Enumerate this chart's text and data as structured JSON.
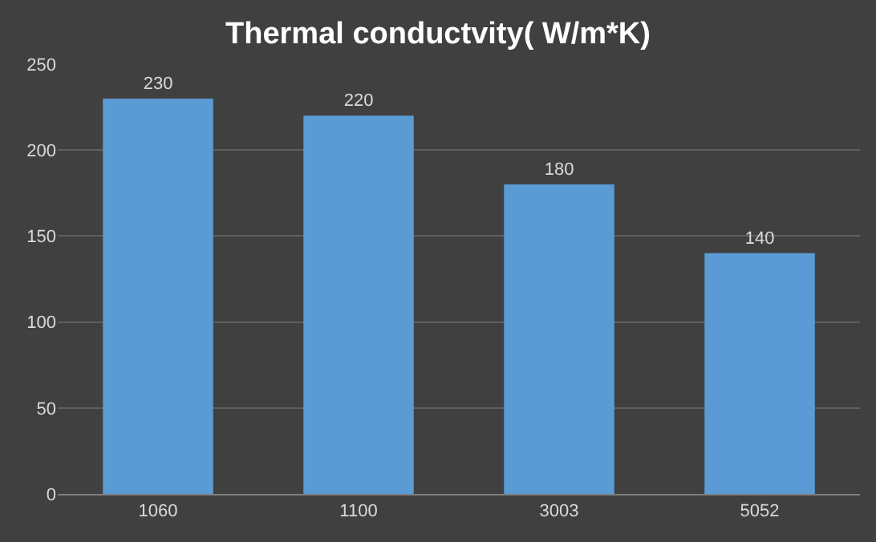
{
  "chart_data": {
    "type": "bar",
    "title": "Thermal conductvity( W/m*K)",
    "categories": [
      "1060",
      "1100",
      "3003",
      "5052"
    ],
    "values": [
      230,
      220,
      180,
      140
    ],
    "color": "#5b9bd5",
    "ylim": [
      0,
      250
    ],
    "yticks": [
      0,
      50,
      100,
      150,
      200,
      250
    ],
    "grid": "y",
    "data_labels": true
  }
}
